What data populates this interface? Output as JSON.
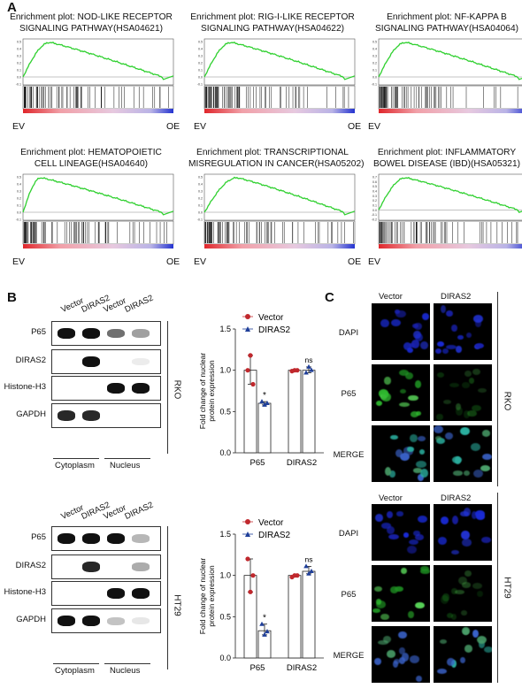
{
  "panels": {
    "a": "A",
    "b": "B",
    "c": "C"
  },
  "gsea": [
    {
      "title_l1": "Enrichment plot: NOD-LIKE RECEPTOR",
      "title_l2": "SIGNALING PATHWAY(HSA04621)",
      "left": "EV",
      "right": "OE",
      "yticks": [
        "0.5",
        "0.4",
        "0.3",
        "0.2",
        "0.1",
        "0.0",
        "-0.1"
      ]
    },
    {
      "title_l1": "Enrichment plot: RIG-I-LIKE RECEPTOR",
      "title_l2": "SIGNALING PATHWAY(HSA04622)",
      "left": "EV",
      "right": "OE",
      "yticks": [
        "0.5",
        "0.4",
        "0.3",
        "0.2",
        "0.1",
        "0.0",
        "-0.1"
      ]
    },
    {
      "title_l1": "Enrichment plot: NF-KAPPA B",
      "title_l2": "SIGNALING PATHWAY(HSA04064)",
      "left": "EV",
      "right": "OE",
      "yticks": [
        "0.5",
        "0.4",
        "0.3",
        "0.2",
        "0.1",
        "0.0",
        "-0.1"
      ]
    },
    {
      "title_l1": "Enrichment plot: HEMATOPOIETIC",
      "title_l2": "CELL LINEAGE(HSA04640)",
      "left": "EV",
      "right": "OE",
      "yticks": [
        "0.5",
        "0.4",
        "0.3",
        "0.2",
        "0.1",
        "0.0",
        "-0.1"
      ]
    },
    {
      "title_l1": "Enrichment plot: TRANSCRIPTIONAL",
      "title_l2": "MISREGULATION IN CANCER(HSA05202)",
      "left": "EV",
      "right": "OE",
      "yticks": [
        "0.5",
        "0.4",
        "0.3",
        "0.2",
        "0.1",
        "0.0",
        "-0.1"
      ]
    },
    {
      "title_l1": "Enrichment plot: INFLAMMATORY",
      "title_l2": "BOWEL DISEASE (IBD)(HSA05321)",
      "left": "EV",
      "right": "OE",
      "yticks": [
        "0.7",
        "0.6",
        "0.5",
        "0.4",
        "0.3",
        "0.2",
        "0.1",
        "0.0",
        "-0.1",
        "-0.2"
      ]
    }
  ],
  "blots": [
    {
      "cell_line": "RKO",
      "lanes": [
        "Vector",
        "DIRAS2",
        "Vector",
        "DIRAS2"
      ],
      "rows": [
        "P65",
        "DIRAS2",
        "Histone-H3",
        "GAPDH"
      ],
      "groups": [
        "Cytoplasm",
        "Nucleus"
      ]
    },
    {
      "cell_line": "HT29",
      "lanes": [
        "Vector",
        "DIRAS2",
        "Vector",
        "DIRAS2"
      ],
      "rows": [
        "P65",
        "DIRAS2",
        "Histone-H3",
        "GAPDH"
      ],
      "groups": [
        "Cytoplasm",
        "Nucleus"
      ]
    }
  ],
  "chart_data": [
    {
      "type": "bar",
      "categories": [
        "P65",
        "DIRAS2"
      ],
      "series": [
        {
          "name": "Vector",
          "values": [
            1.0,
            1.0
          ],
          "points": [
            [
              1.0,
              1.18,
              0.83
            ],
            [
              0.99,
              1.0,
              1.0
            ]
          ]
        },
        {
          "name": "DIRAS2",
          "values": [
            0.6,
            1.0
          ],
          "points": [
            [
              0.62,
              0.58,
              0.6
            ],
            [
              0.97,
              1.04,
              1.0
            ]
          ]
        }
      ],
      "ylabel": "Fold change of nuclear protein expression",
      "ylim": [
        0.0,
        1.5
      ],
      "yticks": [
        "0.0",
        "0.5",
        "1.0",
        "1.5"
      ],
      "annotations": [
        "*",
        "ns"
      ],
      "colors": {
        "Vector": "#c0282d",
        "DIRAS2": "#1f3f99"
      }
    },
    {
      "type": "bar",
      "categories": [
        "P65",
        "DIRAS2"
      ],
      "series": [
        {
          "name": "Vector",
          "values": [
            1.0,
            1.0
          ],
          "points": [
            [
              1.2,
              0.8,
              1.0
            ],
            [
              0.98,
              1.0,
              1.0
            ]
          ]
        },
        {
          "name": "DIRAS2",
          "values": [
            0.33,
            1.05
          ],
          "points": [
            [
              0.41,
              0.28,
              0.32
            ],
            [
              1.11,
              1.02,
              1.05
            ]
          ]
        }
      ],
      "ylabel": "Fold change of nuclear protein expression",
      "ylim": [
        0.0,
        1.5
      ],
      "yticks": [
        "0.0",
        "0.5",
        "1.0",
        "1.5"
      ],
      "annotations": [
        "*",
        "ns"
      ],
      "colors": {
        "Vector": "#c0282d",
        "DIRAS2": "#1f3f99"
      }
    }
  ],
  "micro": [
    {
      "cell_line": "RKO",
      "cols": [
        "Vector",
        "DIRAS2"
      ],
      "rows": [
        "DAPI",
        "P65",
        "MERGE"
      ]
    },
    {
      "cell_line": "HT29",
      "cols": [
        "Vector",
        "DIRAS2"
      ],
      "rows": [
        "DAPI",
        "P65",
        "MERGE"
      ]
    }
  ]
}
